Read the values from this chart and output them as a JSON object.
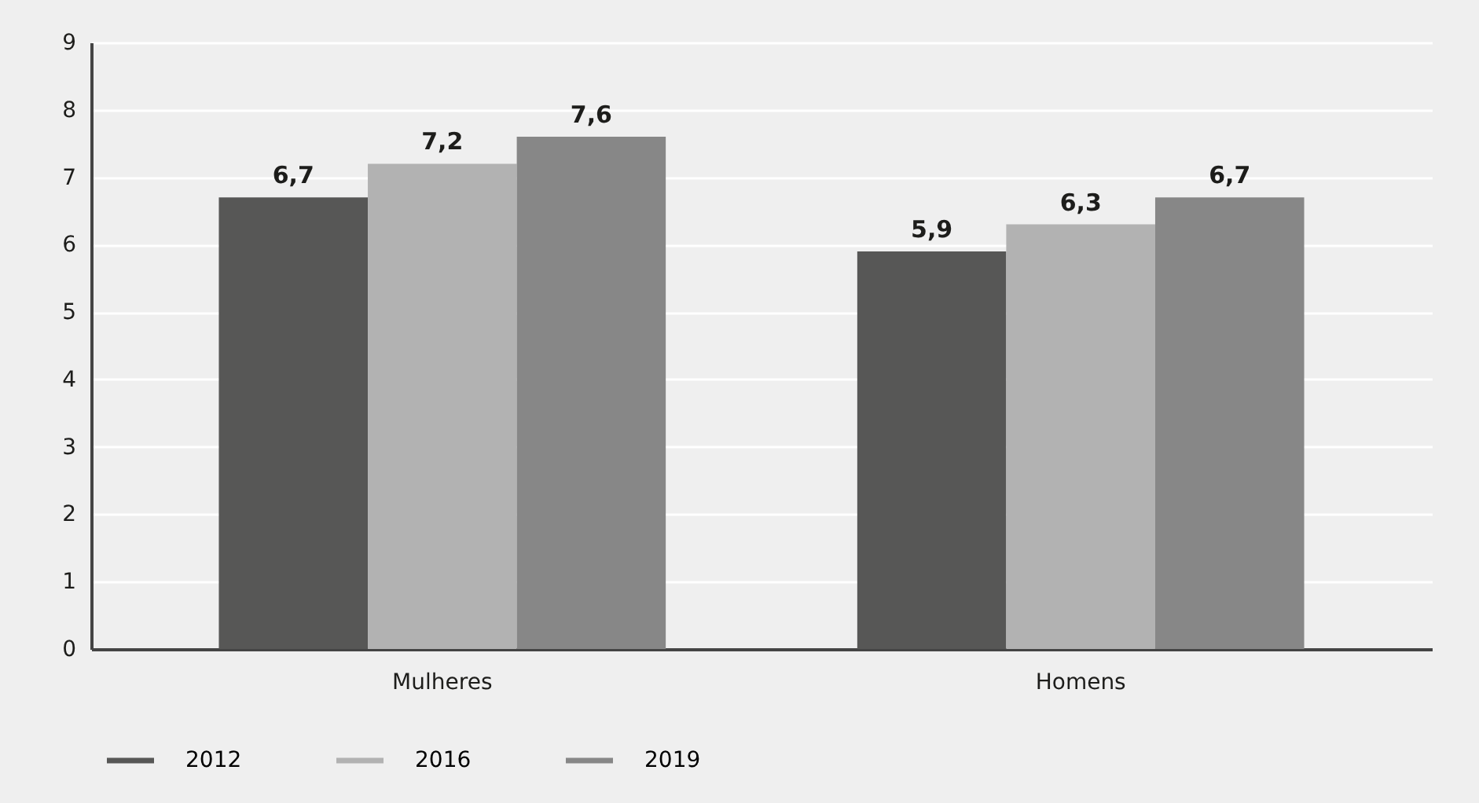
{
  "chart_data": {
    "type": "bar",
    "categories": [
      "Mulheres",
      "Homens"
    ],
    "series": [
      {
        "name": "2012",
        "color": "#575756",
        "values": [
          6.7,
          5.9
        ],
        "value_labels": [
          "6,7",
          "5,9"
        ]
      },
      {
        "name": "2016",
        "color": "#b2b2b2",
        "values": [
          7.2,
          6.3
        ],
        "value_labels": [
          "7,2",
          "6,3"
        ]
      },
      {
        "name": "2019",
        "color": "#878787",
        "values": [
          7.6,
          6.7
        ],
        "value_labels": [
          "7,6",
          "6,7"
        ]
      }
    ],
    "ylim": [
      0,
      9
    ],
    "yticks": [
      0,
      1,
      2,
      3,
      4,
      5,
      6,
      7,
      8,
      9
    ],
    "grid": "y",
    "legend": "bottom"
  }
}
